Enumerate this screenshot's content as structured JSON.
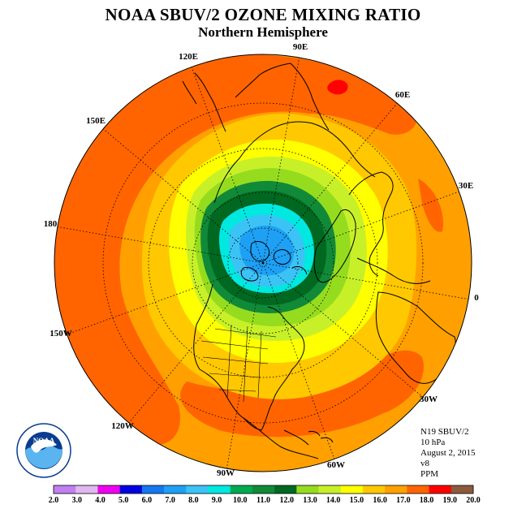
{
  "header": {
    "title": "NOAA SBUV/2 OZONE MIXING RATIO",
    "subtitle": "Northern Hemisphere"
  },
  "info": {
    "satellite": "N19 SBUV/2",
    "level": "10 hPa",
    "date": "August 2, 2015",
    "version": "v8",
    "units": "PPM"
  },
  "longitude_labels": [
    "90E",
    "60E",
    "30E",
    "0",
    "30W",
    "60W",
    "90W",
    "120W",
    "150W",
    "180",
    "150E",
    "120E"
  ],
  "colorbar": {
    "ticks": [
      "2.0",
      "3.0",
      "4.0",
      "5.0",
      "6.0",
      "7.0",
      "8.0",
      "9.0",
      "10.0",
      "11.0",
      "12.0",
      "13.0",
      "14.0",
      "15.0",
      "16.0",
      "17.0",
      "18.0",
      "19.0",
      "20.0"
    ],
    "colors": [
      "#c080f0",
      "#e0b8f0",
      "#f000f0",
      "#0000e0",
      "#1478f0",
      "#1ea0f5",
      "#3cc3f5",
      "#00e8e0",
      "#00aa50",
      "#108a38",
      "#006820",
      "#96dc1e",
      "#c8f028",
      "#ffff00",
      "#ffc800",
      "#ffa000",
      "#ff6400",
      "#ff0000",
      "#8c5a3c"
    ]
  },
  "map": {
    "projection": "north-polar-stereographic",
    "contour_colors": {
      "land_outline": "#000000",
      "graticule": "#000000"
    }
  }
}
